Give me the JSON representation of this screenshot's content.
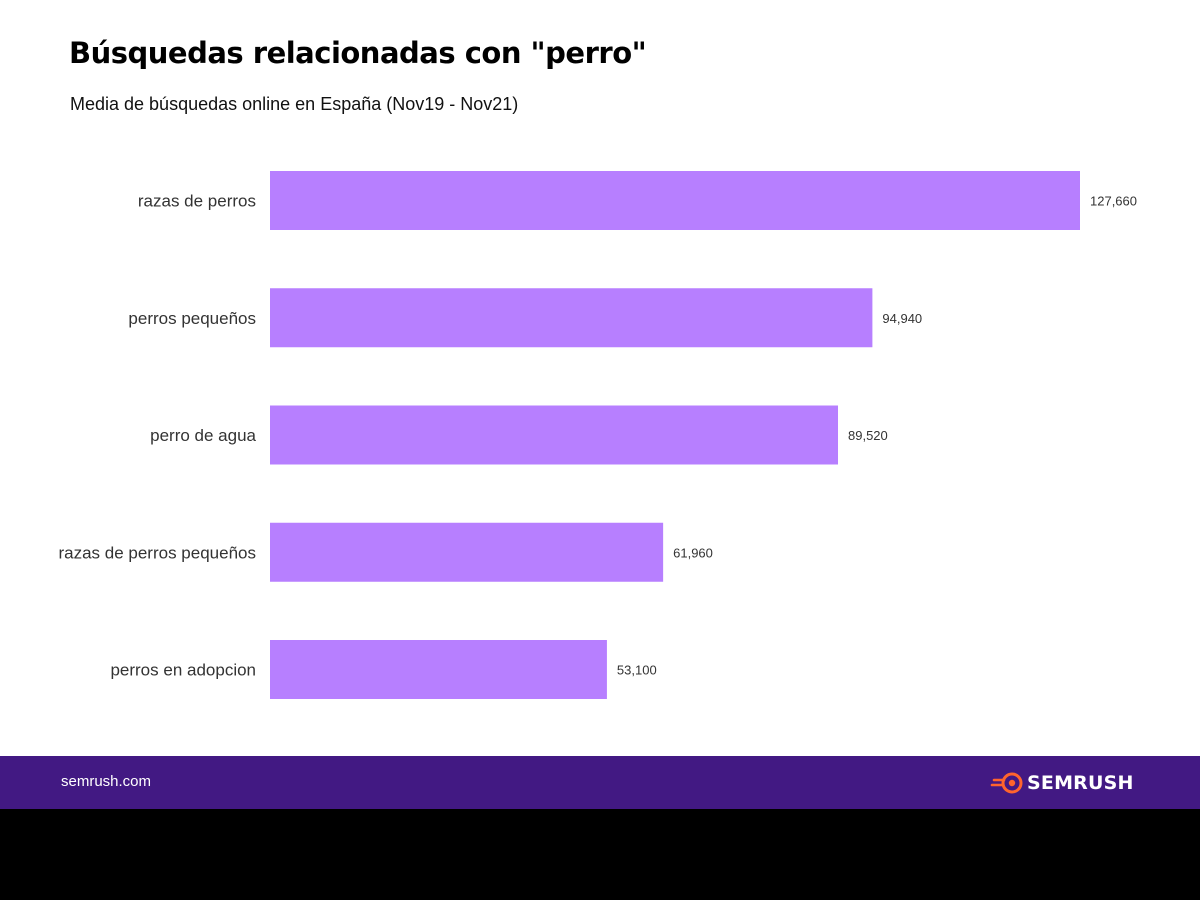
{
  "header": {
    "title": "Búsquedas relacionadas con \"perro\"",
    "subtitle": "Media de búsquedas online en España (Nov19 - Nov21)"
  },
  "chart_data": {
    "type": "bar",
    "orientation": "horizontal",
    "categories": [
      "razas de perros",
      "perros pequeños",
      "perro de agua",
      "razas de perros pequeños",
      "perros en adopcion"
    ],
    "values": [
      127660,
      94940,
      89520,
      61960,
      53100
    ],
    "value_labels": [
      "127,660",
      "94,940",
      "89,520",
      "61,960",
      "53,100"
    ],
    "xlim": [
      0,
      127660
    ],
    "grid": false,
    "legend": "none",
    "title": "Búsquedas relacionadas con \"perro\"",
    "subtitle": "Media de búsquedas online en España (Nov19 - Nov21)"
  },
  "footer": {
    "site": "semrush.com",
    "brand": "SEMRUSH"
  },
  "colors": {
    "bar": "#b77fff",
    "footer_background": "#421983",
    "logo_accent": "#ff642d",
    "text": "#333333"
  },
  "icons": {
    "brand_logo": "semrush-fireball-icon"
  }
}
